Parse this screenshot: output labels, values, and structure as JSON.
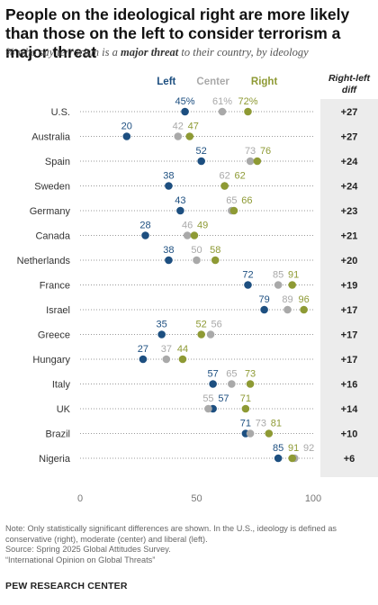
{
  "title": "People on the ideological right are more likely than those on the left to consider terrorism a major threat",
  "subtitle": {
    "before": "% who say terrorism is a ",
    "emphasis": "major threat",
    "after": " to their country, by ideology"
  },
  "diff_header": "Right-left diff",
  "colors": {
    "left": "#1d4f80",
    "center": "#a9a9a9",
    "right": "#8e9a34",
    "diff_bg": "#ececec"
  },
  "chart_data": {
    "type": "scatter",
    "xlim": [
      0,
      100
    ],
    "x_ticks": [
      "0",
      "50",
      "100"
    ],
    "series_names": [
      "Left",
      "Center",
      "Right"
    ],
    "rows": [
      {
        "country": "U.S.",
        "left": 45,
        "center": 61,
        "right": 72,
        "left_label": "45%",
        "center_label": "61%",
        "right_label": "72%",
        "diff": "+27"
      },
      {
        "country": "Australia",
        "left": 20,
        "center": 42,
        "right": 47,
        "left_label": "20",
        "center_label": "42",
        "right_label": "47",
        "diff": "+27"
      },
      {
        "country": "Spain",
        "left": 52,
        "center": 73,
        "right": 76,
        "left_label": "52",
        "center_label": "73",
        "right_label": "76",
        "diff": "+24"
      },
      {
        "country": "Sweden",
        "left": 38,
        "center": 62,
        "right": 62,
        "left_label": "38",
        "center_label": "62",
        "right_label": "62",
        "diff": "+24"
      },
      {
        "country": "Germany",
        "left": 43,
        "center": 65,
        "right": 66,
        "left_label": "43",
        "center_label": "65",
        "right_label": "66",
        "diff": "+23"
      },
      {
        "country": "Canada",
        "left": 28,
        "center": 46,
        "right": 49,
        "left_label": "28",
        "center_label": "46",
        "right_label": "49",
        "diff": "+21"
      },
      {
        "country": "Netherlands",
        "left": 38,
        "center": 50,
        "right": 58,
        "left_label": "38",
        "center_label": "50",
        "right_label": "58",
        "diff": "+20"
      },
      {
        "country": "France",
        "left": 72,
        "center": 85,
        "right": 91,
        "left_label": "72",
        "center_label": "85",
        "right_label": "91",
        "diff": "+19"
      },
      {
        "country": "Israel",
        "left": 79,
        "center": 89,
        "right": 96,
        "left_label": "79",
        "center_label": "89",
        "right_label": "96",
        "diff": "+17"
      },
      {
        "country": "Greece",
        "left": 35,
        "center": 56,
        "right": 52,
        "left_label": "35",
        "center_label": "56",
        "right_label": "52",
        "diff": "+17"
      },
      {
        "country": "Hungary",
        "left": 27,
        "center": 37,
        "right": 44,
        "left_label": "27",
        "center_label": "37",
        "right_label": "44",
        "diff": "+17"
      },
      {
        "country": "Italy",
        "left": 57,
        "center": 65,
        "right": 73,
        "left_label": "57",
        "center_label": "65",
        "right_label": "73",
        "diff": "+16"
      },
      {
        "country": "UK",
        "left": 57,
        "center": 55,
        "right": 71,
        "left_label": "57",
        "center_label": "55",
        "right_label": "71",
        "diff": "+14"
      },
      {
        "country": "Brazil",
        "left": 71,
        "center": 73,
        "right": 81,
        "left_label": "71",
        "center_label": "73",
        "right_label": "81",
        "diff": "+10"
      },
      {
        "country": "Nigeria",
        "left": 85,
        "center": 92,
        "right": 91,
        "left_label": "85",
        "center_label": "92",
        "right_label": "91",
        "diff": "+6"
      }
    ]
  },
  "footnotes": [
    "Note: Only statistically significant differences are shown. In the U.S., ideology is defined as conservative (right), moderate (center) and liberal (left).",
    "Source: Spring 2025 Global Attitudes Survey.",
    "“International Opinion on Global Threats”"
  ],
  "brand": "PEW RESEARCH CENTER"
}
